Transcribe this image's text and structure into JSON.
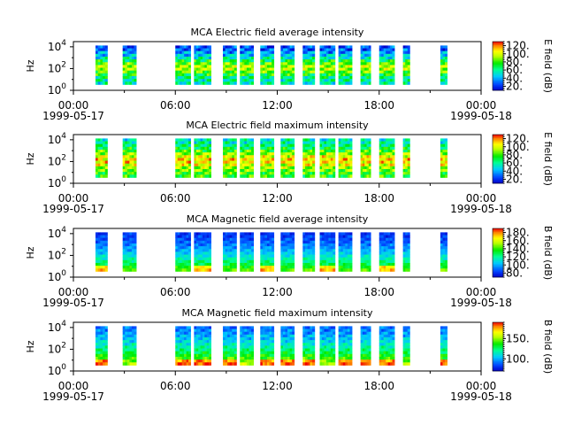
{
  "chart_data": [
    {
      "type": "heatmap",
      "title": "MCA  Electric field average intensity",
      "ylabel": "Hz",
      "yticks": [
        {
          "base": "10",
          "exp": "0"
        },
        {
          "base": "10",
          "exp": "2"
        },
        {
          "base": "10",
          "exp": "4"
        }
      ],
      "y_scale": "log",
      "ylim": [
        1,
        30000
      ],
      "xticks": [
        "00:00",
        "06:00",
        "12:00",
        "18:00",
        "00:00"
      ],
      "xdates": [
        "1999-05-17",
        "1999-05-18"
      ],
      "xlim": [
        "1999-05-17 00:00",
        "1999-05-18 00:00"
      ],
      "colorbar": {
        "label": "E field (dB)",
        "min": 10,
        "max": 130,
        "ticks": [
          "20.",
          "40.",
          "60.",
          "80.",
          "100.",
          "120."
        ]
      },
      "colormap": "rainbow-inverted",
      "profile": "e_avg",
      "segments_hours": [
        [
          1.3,
          2.0
        ],
        [
          2.9,
          3.7
        ],
        [
          6.0,
          6.9
        ],
        [
          7.1,
          8.1
        ],
        [
          8.8,
          9.6
        ],
        [
          9.8,
          10.6
        ],
        [
          11.0,
          11.8
        ],
        [
          12.2,
          13.0
        ],
        [
          13.5,
          14.2
        ],
        [
          14.5,
          15.4
        ],
        [
          15.6,
          16.4
        ],
        [
          16.9,
          17.5
        ],
        [
          18.0,
          18.9
        ],
        [
          19.4,
          19.8
        ],
        [
          21.6,
          22.0
        ]
      ]
    },
    {
      "type": "heatmap",
      "title": "MCA  Electric field maximum intensity",
      "ylabel": "Hz",
      "yticks": [
        {
          "base": "10",
          "exp": "0"
        },
        {
          "base": "10",
          "exp": "2"
        },
        {
          "base": "10",
          "exp": "4"
        }
      ],
      "y_scale": "log",
      "ylim": [
        1,
        30000
      ],
      "xticks": [
        "00:00",
        "06:00",
        "12:00",
        "18:00",
        "00:00"
      ],
      "xdates": [
        "1999-05-17",
        "1999-05-18"
      ],
      "xlim": [
        "1999-05-17 00:00",
        "1999-05-18 00:00"
      ],
      "colorbar": {
        "label": "E field (dB)",
        "min": 10,
        "max": 130,
        "ticks": [
          "20.",
          "40.",
          "60.",
          "80.",
          "100.",
          "120."
        ]
      },
      "colormap": "rainbow-inverted",
      "profile": "e_max",
      "segments_hours": [
        [
          1.3,
          2.0
        ],
        [
          2.9,
          3.7
        ],
        [
          6.0,
          6.9
        ],
        [
          7.1,
          8.1
        ],
        [
          8.8,
          9.6
        ],
        [
          9.8,
          10.6
        ],
        [
          11.0,
          11.8
        ],
        [
          12.2,
          13.0
        ],
        [
          13.5,
          14.2
        ],
        [
          14.5,
          15.4
        ],
        [
          15.6,
          16.4
        ],
        [
          16.9,
          17.5
        ],
        [
          18.0,
          18.9
        ],
        [
          19.4,
          19.8
        ],
        [
          21.6,
          22.0
        ]
      ]
    },
    {
      "type": "heatmap",
      "title": "MCA  Magnetic field average intensity",
      "ylabel": "Hz",
      "yticks": [
        {
          "base": "10",
          "exp": "0"
        },
        {
          "base": "10",
          "exp": "2"
        },
        {
          "base": "10",
          "exp": "4"
        }
      ],
      "y_scale": "log",
      "ylim": [
        1,
        30000
      ],
      "xticks": [
        "00:00",
        "06:00",
        "12:00",
        "18:00",
        "00:00"
      ],
      "xdates": [
        "1999-05-17",
        "1999-05-18"
      ],
      "xlim": [
        "1999-05-17 00:00",
        "1999-05-18 00:00"
      ],
      "colorbar": {
        "label": "B field (dB)",
        "min": 70,
        "max": 190,
        "ticks": [
          "80.",
          "100.",
          "120.",
          "140.",
          "160.",
          "180."
        ]
      },
      "colormap": "rainbow-inverted",
      "profile": "b_avg",
      "segments_hours": [
        [
          1.3,
          2.0
        ],
        [
          2.9,
          3.7
        ],
        [
          6.0,
          6.9
        ],
        [
          7.1,
          8.1
        ],
        [
          8.8,
          9.6
        ],
        [
          9.8,
          10.6
        ],
        [
          11.0,
          11.8
        ],
        [
          12.2,
          13.0
        ],
        [
          13.5,
          14.2
        ],
        [
          14.5,
          15.4
        ],
        [
          15.6,
          16.4
        ],
        [
          16.9,
          17.5
        ],
        [
          18.0,
          18.9
        ],
        [
          19.4,
          19.8
        ],
        [
          21.6,
          22.0
        ]
      ]
    },
    {
      "type": "heatmap",
      "title": "MCA  Magnetic field maximum intensity",
      "ylabel": "Hz",
      "yticks": [
        {
          "base": "10",
          "exp": "0"
        },
        {
          "base": "10",
          "exp": "2"
        },
        {
          "base": "10",
          "exp": "4"
        }
      ],
      "y_scale": "log",
      "ylim": [
        1,
        30000
      ],
      "xticks": [
        "00:00",
        "06:00",
        "12:00",
        "18:00",
        "00:00"
      ],
      "xdates": [
        "1999-05-17",
        "1999-05-18"
      ],
      "xlim": [
        "1999-05-17 00:00",
        "1999-05-18 00:00"
      ],
      "colorbar": {
        "label": "B field (dB)",
        "min": 70,
        "max": 190,
        "ticks": [
          "100.",
          "150."
        ]
      },
      "colormap": "rainbow-inverted",
      "profile": "b_max",
      "segments_hours": [
        [
          1.3,
          2.0
        ],
        [
          2.9,
          3.7
        ],
        [
          6.0,
          6.9
        ],
        [
          7.1,
          8.1
        ],
        [
          8.8,
          9.6
        ],
        [
          9.8,
          10.6
        ],
        [
          11.0,
          11.8
        ],
        [
          12.2,
          13.0
        ],
        [
          13.5,
          14.2
        ],
        [
          14.5,
          15.4
        ],
        [
          15.6,
          16.4
        ],
        [
          16.9,
          17.5
        ],
        [
          18.0,
          18.9
        ],
        [
          19.4,
          19.8
        ],
        [
          21.6,
          22.0
        ]
      ]
    }
  ]
}
